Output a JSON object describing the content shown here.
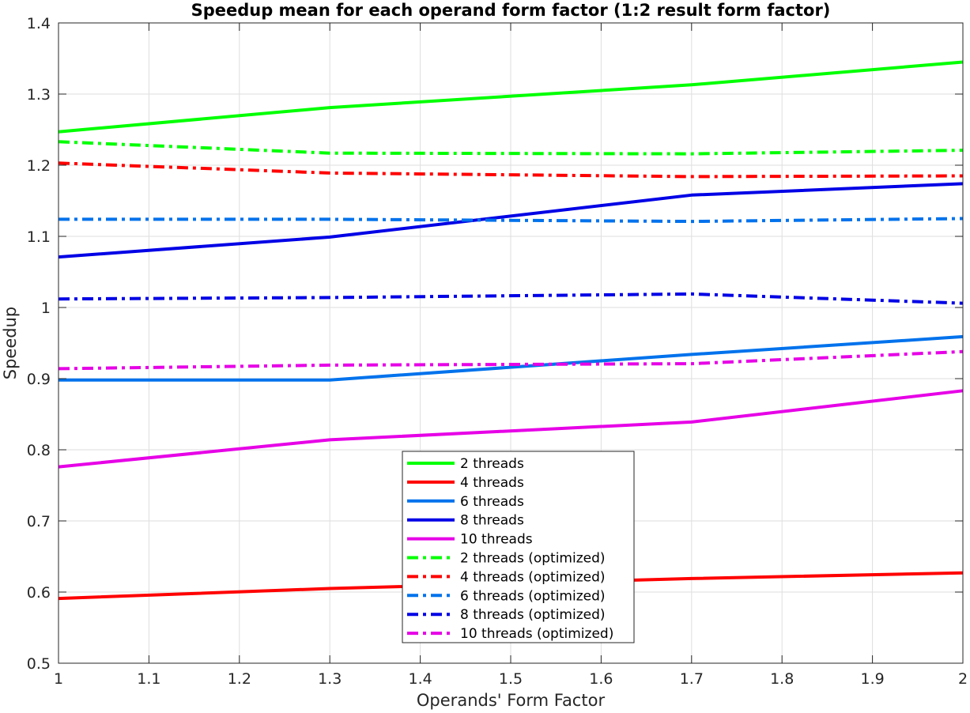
{
  "chart_data": {
    "type": "line",
    "title": "Speedup mean for each operand form factor (1:2 result form factor)",
    "xlabel": "Operands' Form Factor",
    "ylabel": "Speedup",
    "xlim": [
      1,
      2
    ],
    "ylim": [
      0.5,
      1.4
    ],
    "x_ticks": [
      1,
      1.1,
      1.2,
      1.3,
      1.4,
      1.5,
      1.6,
      1.7,
      1.8,
      1.9,
      2
    ],
    "x_tick_labels": [
      "1",
      "1.1",
      "1.2",
      "1.3",
      "1.4",
      "1.5",
      "1.6",
      "1.7",
      "1.8",
      "1.9",
      "2"
    ],
    "y_ticks": [
      0.5,
      0.6,
      0.7,
      0.8,
      0.9,
      1.0,
      1.1,
      1.2,
      1.3,
      1.4
    ],
    "y_tick_labels": [
      "0.5",
      "0.6",
      "0.7",
      "0.8",
      "0.9",
      "1",
      "1.1",
      "1.2",
      "1.3",
      "1.4"
    ],
    "grid": true,
    "legend_position": "bottom-center",
    "x": [
      1,
      1.3,
      1.7,
      2
    ],
    "series": [
      {
        "name": "2 threads",
        "color": "#00ff00",
        "style": "solid",
        "values": [
          1.247,
          1.281,
          1.313,
          1.345
        ]
      },
      {
        "name": "4 threads",
        "color": "#ff0000",
        "style": "solid",
        "values": [
          0.591,
          0.605,
          0.619,
          0.627
        ]
      },
      {
        "name": "6 threads",
        "color": "#0072ec",
        "style": "solid",
        "values": [
          0.898,
          0.898,
          0.934,
          0.959
        ]
      },
      {
        "name": "8 threads",
        "color": "#0000e6",
        "style": "solid",
        "values": [
          1.071,
          1.099,
          1.158,
          1.174
        ]
      },
      {
        "name": "10 threads",
        "color": "#e600e6",
        "style": "solid",
        "values": [
          0.776,
          0.814,
          0.839,
          0.883
        ]
      },
      {
        "name": "2 threads (optimized)",
        "color": "#00ff00",
        "style": "dashdot",
        "values": [
          1.233,
          1.217,
          1.216,
          1.221
        ]
      },
      {
        "name": "4 threads (optimized)",
        "color": "#ff0000",
        "style": "dashdot",
        "values": [
          1.203,
          1.189,
          1.184,
          1.185
        ]
      },
      {
        "name": "6 threads (optimized)",
        "color": "#0072ec",
        "style": "dashdot",
        "values": [
          1.124,
          1.124,
          1.121,
          1.125
        ]
      },
      {
        "name": "8 threads (optimized)",
        "color": "#0000e6",
        "style": "dashdot",
        "values": [
          1.012,
          1.014,
          1.019,
          1.006
        ]
      },
      {
        "name": "10 threads (optimized)",
        "color": "#e600e6",
        "style": "dashdot",
        "values": [
          0.914,
          0.919,
          0.921,
          0.938
        ]
      }
    ]
  }
}
